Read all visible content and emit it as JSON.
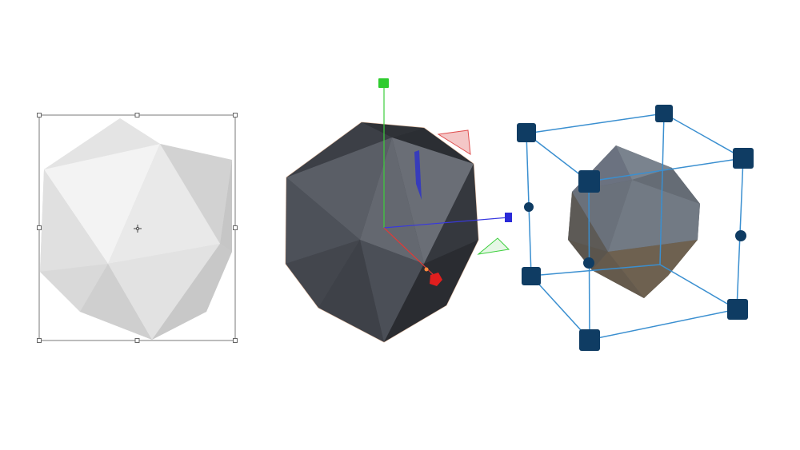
{
  "scene": {
    "background": "#ffffff",
    "panels": [
      {
        "kind": "2d-bounding-box-transform",
        "object": "icosahedron",
        "colors": {
          "face_light": "#efefef",
          "face_mid": "#dcdcdc",
          "face_dark": "#cfcfcf",
          "frame": "#7a7a7a",
          "handle": "#ffffff"
        }
      },
      {
        "kind": "3d-translate-gizmo",
        "object": "icosahedron",
        "colors": {
          "face_light": "#5f636b",
          "face_mid": "#4c5058",
          "face_dark": "#34373d",
          "outline": "#e8c2a8",
          "x_axis": "#e53935",
          "y_axis": "#3ccf3c",
          "z_axis": "#3838e0"
        }
      },
      {
        "kind": "3d-scale-bounding-box",
        "object": "icosahedron",
        "colors": {
          "face_light": "#6a7280",
          "face_mid": "#5e6266",
          "face_dark": "#6e6150",
          "box_line": "#3a8fd0",
          "handle": "#0f3c63"
        }
      }
    ]
  }
}
